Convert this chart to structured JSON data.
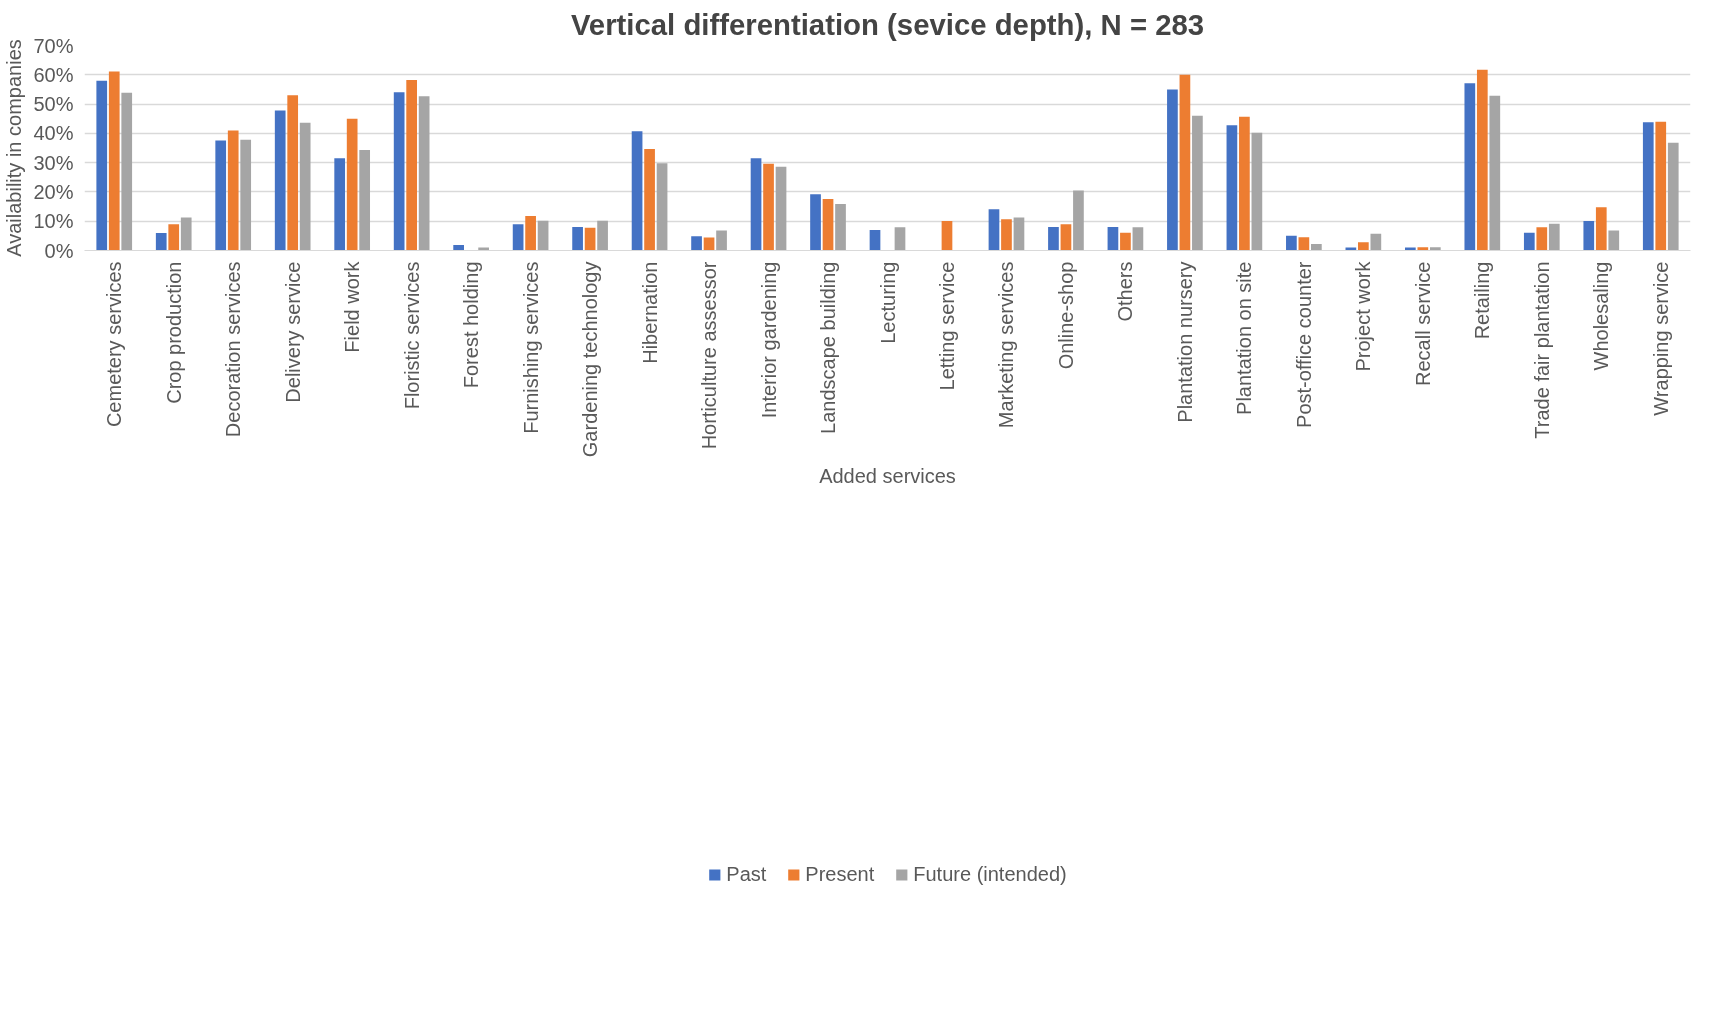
{
  "chart_data": {
    "type": "bar",
    "title": "Vertical differentiation (sevice depth), N = 283",
    "xlabel": "Added services",
    "ylabel": "Availability in companies",
    "categories": [
      "Cemetery services",
      "Crop production",
      "Decoration services",
      "Delivery service",
      "Field work",
      "Floristic services",
      "Forest holding",
      "Furnishing services",
      "Gardening technology",
      "Hibernation",
      "Horticulture assessor",
      "Interior gardening",
      "Landscape building",
      "Lecturing",
      "Letting service",
      "Marketing services",
      "Online-shop",
      "Others",
      "Plantation nursery",
      "Plantation on site",
      "Post-office counter",
      "Project work",
      "Recall service",
      "Retailing",
      "Trade fair plantation",
      "Wholesaling",
      "Wrapping service"
    ],
    "series": [
      {
        "name": "Past",
        "color": "#4472c4",
        "values": [
          58.0,
          6.0,
          37.6,
          47.8,
          31.5,
          54.0,
          1.9,
          9.0,
          8.0,
          40.7,
          4.9,
          31.5,
          19.2,
          7.0,
          null,
          14.1,
          8.0,
          8.0,
          55.0,
          42.8,
          5.0,
          1.0,
          1.0,
          57.1,
          6.1,
          10.1,
          43.8
        ]
      },
      {
        "name": "Present",
        "color": "#ed7d31",
        "values": [
          61.1,
          9.0,
          41.0,
          53.0,
          45.0,
          58.2,
          null,
          11.8,
          7.8,
          34.7,
          4.4,
          29.6,
          17.6,
          null,
          10.1,
          10.7,
          9.0,
          6.1,
          60.0,
          45.7,
          4.5,
          2.8,
          1.1,
          61.7,
          7.9,
          14.8,
          44.0
        ]
      },
      {
        "name": "Future (intended)",
        "color": "#a5a5a5",
        "values": [
          53.9,
          11.3,
          37.8,
          43.6,
          34.3,
          52.7,
          1.0,
          10.2,
          10.2,
          29.8,
          6.8,
          28.6,
          15.9,
          7.9,
          null,
          11.3,
          20.5,
          7.9,
          46.0,
          40.2,
          2.2,
          5.7,
          1.1,
          52.8,
          9.1,
          6.8,
          36.8
        ]
      }
    ],
    "ylim": [
      0,
      70
    ],
    "yticks": [
      {
        "value": 0,
        "label": "0%"
      },
      {
        "value": 10,
        "label": "10%"
      },
      {
        "value": 20,
        "label": "20%"
      },
      {
        "value": 30,
        "label": "30%"
      },
      {
        "value": 40,
        "label": "40%"
      },
      {
        "value": 50,
        "label": "50%"
      },
      {
        "value": 60,
        "label": "60%"
      },
      {
        "value": 70,
        "label": "70%"
      }
    ],
    "grid": "y",
    "legend": "bottom"
  }
}
